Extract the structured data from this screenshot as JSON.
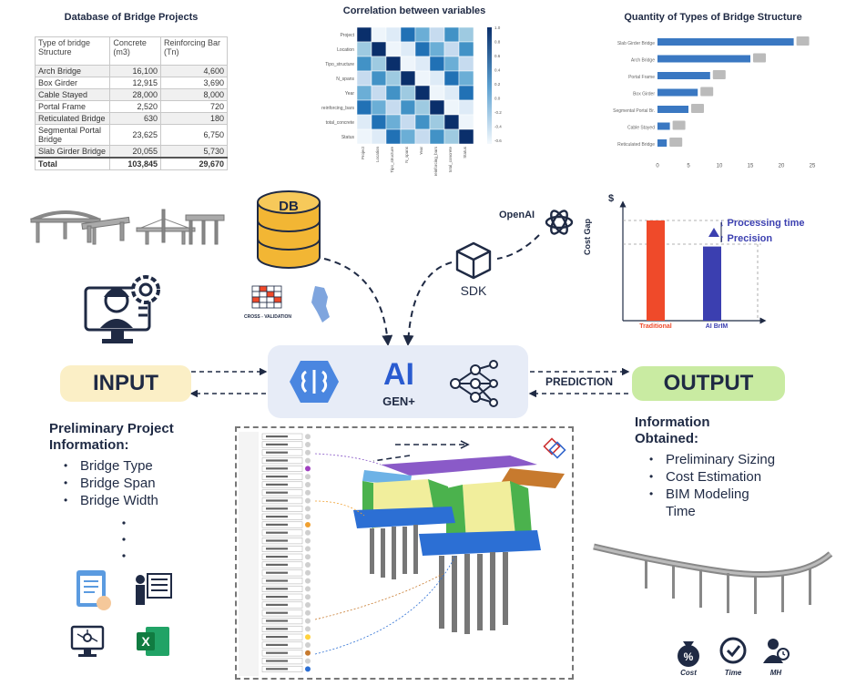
{
  "db_table": {
    "title": "Database of Bridge Projects",
    "headers": [
      "Type of bridge Structure",
      "Concrete (m3)",
      "Reinforcing Bar (Tn)"
    ],
    "rows": [
      [
        "Arch Bridge",
        "16,100",
        "4,600"
      ],
      [
        "Box Girder",
        "12,915",
        "3,690"
      ],
      [
        "Cable Stayed",
        "28,000",
        "8,000"
      ],
      [
        "Portal Frame",
        "2,520",
        "720"
      ],
      [
        "Reticulated Bridge",
        "630",
        "180"
      ],
      [
        "Segmental Portal Bridge",
        "23,625",
        "6,750"
      ],
      [
        "Slab Girder Bridge",
        "20,055",
        "5,730"
      ]
    ],
    "total": [
      "Total",
      "103,845",
      "29,670"
    ]
  },
  "heatmap": {
    "title": "Correlation between variables",
    "row_labels": [
      "Project",
      "Location",
      "Tipo_structure",
      "N_spans",
      "Year",
      "reinforcing_bars",
      "total_concrete",
      "Status"
    ],
    "col_labels": [
      "Project",
      "Location",
      "Tipo_structure",
      "N_spans",
      "Year",
      "reinforcing_bars",
      "total_concrete",
      "Status"
    ],
    "colorbar_ticks": [
      "1.0",
      "0.8",
      "0.6",
      "0.4",
      "0.2",
      "0.0",
      "-0.2",
      "-0.4",
      "-0.6"
    ]
  },
  "chart_data": {
    "type": "bar",
    "title": "Quantity of Types of Bridge Structure",
    "orientation": "horizontal",
    "categories": [
      "Slab Girder Bridge",
      "Arch Bridge",
      "Portal Frame",
      "Box Girder",
      "Segmental Portal Br.",
      "Cable Stayed",
      "Reticulated Bridge"
    ],
    "values": [
      22,
      15,
      8.5,
      6.5,
      5,
      2,
      1.5
    ],
    "xlim": [
      0,
      25
    ],
    "xticks": [
      "0",
      "5",
      "10",
      "15",
      "20",
      "25"
    ],
    "bar_color": "#3a78c2"
  },
  "cost_chart": {
    "y_axis_label": "Cost Gap",
    "currency_symbol": "$",
    "categories": [
      "Traditional",
      "AI BrIM"
    ],
    "values": [
      100,
      74
    ],
    "colors": [
      "#ef4a2a",
      "#3b3fb0"
    ],
    "annotations": [
      "↓ Processing time",
      "↑ Precision"
    ]
  },
  "center": {
    "db_label": "DB",
    "openai_label": "OpenAI",
    "sdk_label": "SDK",
    "crossval_label": "CROSS - VALIDATION",
    "ai_label": "AI",
    "gen_label": "GEN+",
    "prediction_label": "PREDICTION"
  },
  "input": {
    "label": "INPUT",
    "title": "Preliminary Project Information:",
    "items": [
      "Bridge Type",
      "Bridge Span",
      "Bridge Width"
    ]
  },
  "output": {
    "label": "OUTPUT",
    "title": "Information Obtained:",
    "items": [
      "Preliminary Sizing",
      "Cost Estimation",
      "BIM Modeling Time"
    ],
    "icon_labels": [
      "Cost",
      "Time",
      "MH"
    ]
  },
  "colors": {
    "input_bg": "#fbefc6",
    "output_bg": "#c9eba2",
    "ai_box_bg": "#e7ecf7",
    "db_gold": "#f2b634",
    "navy": "#1f2a44"
  }
}
